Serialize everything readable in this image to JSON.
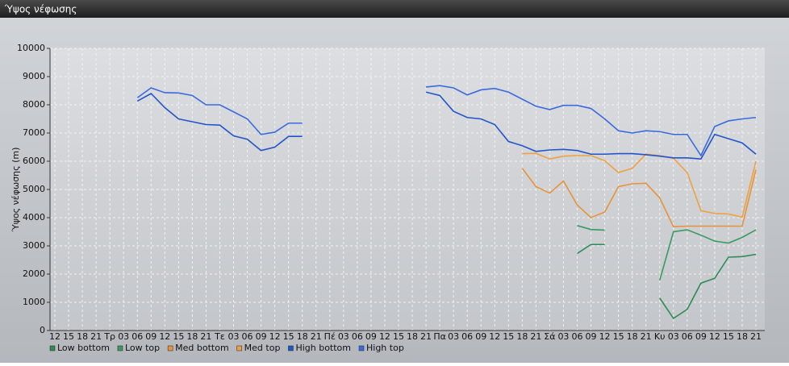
{
  "chart_data": {
    "type": "line",
    "title": "Ύψος νέφωσης",
    "y_label": "Ύψος νέφωσης (m)",
    "categories": [
      "12",
      "15",
      "18",
      "21",
      "Τρ",
      "03",
      "06",
      "09",
      "12",
      "15",
      "18",
      "21",
      "Τε",
      "03",
      "06",
      "09",
      "12",
      "15",
      "18",
      "21",
      "Πέ",
      "03",
      "06",
      "09",
      "12",
      "15",
      "18",
      "21",
      "Πα",
      "03",
      "06",
      "09",
      "12",
      "15",
      "18",
      "21",
      "Σά",
      "03",
      "06",
      "09",
      "12",
      "15",
      "18",
      "21",
      "Κυ",
      "03",
      "06",
      "09",
      "12",
      "15",
      "18",
      "21"
    ],
    "ylim": [
      0,
      10000
    ],
    "yticks": [
      0,
      1000,
      2000,
      3000,
      4000,
      5000,
      6000,
      7000,
      8000,
      9000,
      10000
    ],
    "grid": true,
    "series": [
      {
        "name": "Low bottom",
        "color": "#2e8b57",
        "values": [
          null,
          null,
          null,
          null,
          null,
          null,
          null,
          null,
          null,
          null,
          null,
          null,
          null,
          null,
          null,
          null,
          null,
          null,
          null,
          null,
          null,
          null,
          null,
          null,
          null,
          null,
          null,
          null,
          null,
          null,
          null,
          null,
          null,
          null,
          null,
          null,
          null,
          null,
          2730,
          3050,
          3050,
          null,
          null,
          null,
          1150,
          430,
          750,
          1680,
          1850,
          2600,
          2620,
          2700
        ]
      },
      {
        "name": "Low top",
        "color": "#3a9a62",
        "values": [
          null,
          null,
          null,
          null,
          null,
          null,
          null,
          null,
          null,
          null,
          null,
          null,
          null,
          null,
          null,
          null,
          null,
          null,
          null,
          null,
          null,
          null,
          null,
          null,
          null,
          null,
          null,
          null,
          null,
          null,
          null,
          null,
          null,
          null,
          null,
          null,
          null,
          null,
          3720,
          3580,
          3560,
          null,
          null,
          null,
          1780,
          3500,
          3570,
          3380,
          3170,
          3100,
          3300,
          3570
        ]
      },
      {
        "name": "Med bottom",
        "color": "#e8923a",
        "values": [
          null,
          null,
          null,
          null,
          null,
          null,
          null,
          null,
          null,
          null,
          null,
          null,
          null,
          null,
          null,
          null,
          null,
          null,
          null,
          null,
          null,
          null,
          null,
          null,
          null,
          null,
          null,
          null,
          null,
          null,
          null,
          null,
          null,
          null,
          5750,
          5100,
          4870,
          5300,
          4450,
          4000,
          4200,
          5100,
          5200,
          5220,
          4700,
          3680,
          3700,
          3700,
          3700,
          3700,
          3700,
          5700
        ]
      },
      {
        "name": "Med top",
        "color": "#f0a040",
        "values": [
          null,
          null,
          null,
          null,
          null,
          null,
          null,
          null,
          null,
          null,
          null,
          null,
          null,
          null,
          null,
          null,
          null,
          null,
          null,
          null,
          null,
          null,
          null,
          null,
          null,
          null,
          null,
          null,
          null,
          null,
          null,
          null,
          null,
          null,
          6270,
          6280,
          6080,
          6180,
          6200,
          6200,
          6020,
          5600,
          5750,
          6250,
          6200,
          6100,
          5600,
          4250,
          4150,
          4130,
          4020,
          6000
        ]
      },
      {
        "name": "High bottom",
        "color": "#2255cc",
        "values": [
          null,
          null,
          null,
          null,
          null,
          null,
          8130,
          8400,
          7900,
          7500,
          7400,
          7300,
          7280,
          6900,
          6780,
          6380,
          6500,
          6880,
          6880,
          null,
          null,
          null,
          null,
          null,
          null,
          null,
          null,
          8450,
          8330,
          7770,
          7550,
          7500,
          7300,
          6700,
          6550,
          6350,
          6400,
          6420,
          6380,
          6250,
          6250,
          6270,
          6270,
          6230,
          6180,
          6120,
          6120,
          6080,
          6950,
          6800,
          6650,
          6250
        ]
      },
      {
        "name": "High top",
        "color": "#3a6ae0",
        "values": [
          null,
          null,
          null,
          null,
          null,
          null,
          8250,
          8600,
          8430,
          8420,
          8330,
          8000,
          8000,
          7750,
          7500,
          6950,
          7030,
          7350,
          7350,
          null,
          null,
          null,
          null,
          null,
          null,
          null,
          null,
          8630,
          8680,
          8600,
          8350,
          8530,
          8580,
          8450,
          8200,
          7950,
          7830,
          7980,
          7980,
          7870,
          7500,
          7080,
          7000,
          7080,
          7050,
          6950,
          6950,
          6200,
          7230,
          7430,
          7500,
          7550
        ]
      }
    ]
  }
}
